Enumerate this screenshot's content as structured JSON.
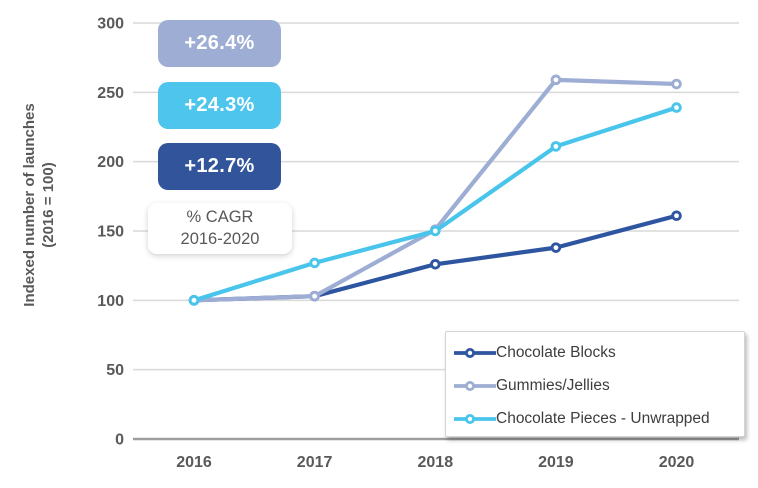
{
  "chart_data": {
    "type": "line",
    "categories": [
      "2016",
      "2017",
      "2018",
      "2019",
      "2020"
    ],
    "series": [
      {
        "name": "Chocolate Blocks",
        "color": "#2e55a0",
        "values": [
          100,
          103,
          126,
          138,
          161
        ]
      },
      {
        "name": "Gummies/Jellies",
        "color": "#9dadd4",
        "values": [
          100,
          103,
          151,
          259,
          256
        ]
      },
      {
        "name": "Chocolate Pieces - Unwrapped",
        "color": "#49c5ec",
        "values": [
          100,
          127,
          150,
          211,
          239
        ]
      }
    ],
    "ylabel_line1": "Indexed number of launches",
    "ylabel_line2": "(2016 = 100)",
    "yticks": [
      0,
      50,
      100,
      150,
      200,
      250,
      300
    ],
    "ylim": [
      0,
      300
    ],
    "grid": true,
    "legend_position": "bottom-right"
  },
  "annotations": {
    "badges": [
      {
        "label": "+26.4%",
        "color": "#9dadd4",
        "text_color": "#ffffff"
      },
      {
        "label": "+24.3%",
        "color": "#4ec5ec",
        "text_color": "#ffffff"
      },
      {
        "label": "+12.7%",
        "color": "#31549b",
        "text_color": "#ffffff"
      }
    ],
    "cagr_note_line1": "% CAGR",
    "cagr_note_line2": "2016-2020"
  },
  "style_colors": {
    "grid": "#d9d9d9",
    "axis": "#9e9e9e",
    "tick_text": "#595959",
    "legend_text": "#3d3d3d"
  }
}
